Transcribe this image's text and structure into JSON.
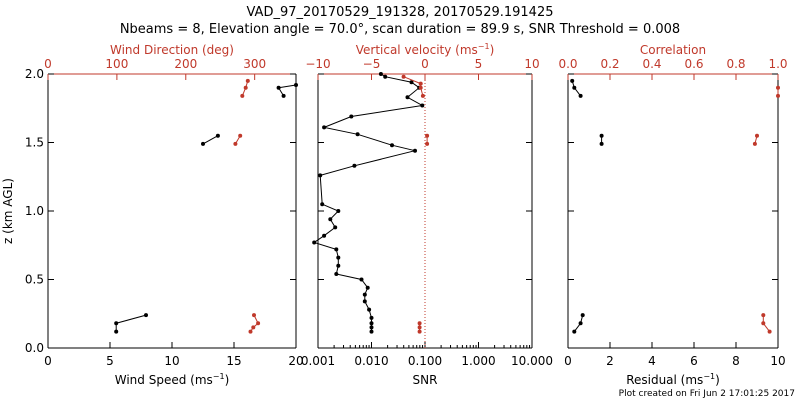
{
  "title": {
    "line1": "VAD_97_20170529_191328, 20170529.191425",
    "line2": "Nbeams = 8, Elevation angle = 70.0°, scan duration = 89.9 s, SNR Threshold = 0.008"
  },
  "footer": "Plot created on Fri Jun  2 17:01:25 2017",
  "colors": {
    "primary": "#000000",
    "secondary": "#c0392b"
  },
  "chart_data": [
    {
      "type": "line",
      "ylabel": "z (km AGL)",
      "ylim": [
        0,
        2.0
      ],
      "yticks": [
        "0.0",
        "0.5",
        "1.0",
        "1.5",
        "2.0"
      ],
      "bottom_axis": {
        "label": "Wind Speed (ms",
        "label_sup": "−1",
        "label_close": ")",
        "range": [
          0,
          20
        ],
        "ticks": [
          "0",
          "5",
          "10",
          "15",
          "20"
        ]
      },
      "top_axis": {
        "label": "Wind Direction (deg)",
        "range": [
          0,
          360
        ],
        "ticks": [
          "0",
          "100",
          "200",
          "300"
        ]
      },
      "series": [
        {
          "axis": "bottom",
          "segments": [
            [
              [
                5.5,
                0.12
              ],
              [
                5.5,
                0.18
              ],
              [
                7.9,
                0.24
              ]
            ],
            [
              [
                12.5,
                1.49
              ],
              [
                13.7,
                1.55
              ]
            ],
            [
              [
                19.0,
                1.84
              ],
              [
                18.6,
                1.9
              ],
              [
                20.0,
                1.92
              ]
            ]
          ]
        },
        {
          "axis": "top",
          "segments": [
            [
              [
                294,
                0.12
              ],
              [
                298,
                0.15
              ],
              [
                305,
                0.18
              ],
              [
                299,
                0.24
              ]
            ],
            [
              [
                272,
                1.49
              ],
              [
                279,
                1.55
              ]
            ],
            [
              [
                282,
                1.84
              ],
              [
                287,
                1.9
              ],
              [
                290,
                1.95
              ]
            ]
          ]
        }
      ]
    },
    {
      "type": "line",
      "ylim": [
        0,
        2.0
      ],
      "bottom_axis": {
        "label": "SNR",
        "range": [
          0.001,
          10
        ],
        "scale": "log",
        "ticks": [
          "0.001",
          "0.010",
          "0.100",
          "1.000",
          "10.000"
        ]
      },
      "top_axis": {
        "label": "Vertical velocity (ms",
        "label_sup": "−1",
        "label_close": ")",
        "range": [
          -10,
          10
        ],
        "ticks": [
          "−10",
          "−5",
          "0",
          "5",
          "10"
        ]
      },
      "zero_line": 0,
      "series": [
        {
          "axis": "bottom",
          "segments": [
            [
              [
                0.01,
                0.12
              ],
              [
                0.01,
                0.15
              ],
              [
                0.01,
                0.18
              ],
              [
                0.01,
                0.22
              ],
              [
                0.009,
                0.28
              ],
              [
                0.0075,
                0.34
              ],
              [
                0.0075,
                0.39
              ],
              [
                0.0085,
                0.44
              ],
              [
                0.0065,
                0.5
              ],
              [
                0.0022,
                0.54
              ],
              [
                0.0024,
                0.6
              ],
              [
                0.0024,
                0.66
              ],
              [
                0.0022,
                0.72
              ],
              [
                0.00085,
                0.77
              ],
              [
                0.0013,
                0.82
              ],
              [
                0.0021,
                0.88
              ],
              [
                0.0017,
                0.94
              ],
              [
                0.0024,
                1.0
              ],
              [
                0.0012,
                1.05
              ],
              [
                0.0011,
                1.26
              ],
              [
                0.0048,
                1.33
              ],
              [
                0.065,
                1.44
              ],
              [
                0.0242,
                1.48
              ],
              [
                0.0055,
                1.56
              ],
              [
                0.0013,
                1.61
              ],
              [
                0.0042,
                1.69
              ],
              [
                0.089,
                1.77
              ],
              [
                0.047,
                1.83
              ],
              [
                0.078,
                1.9
              ],
              [
                0.056,
                1.94
              ],
              [
                0.018,
                1.98
              ],
              [
                0.015,
                2.0
              ]
            ]
          ]
        },
        {
          "axis": "top",
          "segments": [
            [
              [
                -0.5,
                0.12
              ],
              [
                -0.5,
                0.15
              ],
              [
                -0.5,
                0.18
              ]
            ],
            [
              [
                0.2,
                1.49
              ],
              [
                0.2,
                1.55
              ]
            ],
            [
              [
                -0.2,
                1.84
              ],
              [
                -0.4,
                1.9
              ],
              [
                -0.4,
                1.93
              ],
              [
                -2.0,
                1.98
              ]
            ]
          ]
        }
      ]
    },
    {
      "type": "line",
      "ylim": [
        0,
        2.0
      ],
      "bottom_axis": {
        "label": "Residual (ms",
        "label_sup": "−1",
        "label_close": ")",
        "range": [
          0,
          10
        ],
        "ticks": [
          "0",
          "2",
          "4",
          "6",
          "8",
          "10"
        ]
      },
      "top_axis": {
        "label": "Correlation",
        "range": [
          0,
          1.0
        ],
        "ticks": [
          "0.0",
          "0.2",
          "0.4",
          "0.6",
          "0.8",
          "1.0"
        ]
      },
      "series": [
        {
          "axis": "bottom",
          "segments": [
            [
              [
                0.3,
                0.12
              ],
              [
                0.6,
                0.18
              ],
              [
                0.7,
                0.24
              ]
            ],
            [
              [
                1.6,
                1.49
              ],
              [
                1.6,
                1.55
              ]
            ],
            [
              [
                0.6,
                1.84
              ],
              [
                0.3,
                1.9
              ],
              [
                0.2,
                1.95
              ]
            ]
          ]
        },
        {
          "axis": "top",
          "segments": [
            [
              [
                0.96,
                0.12
              ],
              [
                0.93,
                0.18
              ],
              [
                0.93,
                0.24
              ]
            ],
            [
              [
                0.89,
                1.49
              ],
              [
                0.9,
                1.55
              ]
            ],
            [
              [
                1.0,
                1.84
              ],
              [
                1.0,
                1.9
              ]
            ]
          ]
        }
      ]
    }
  ]
}
